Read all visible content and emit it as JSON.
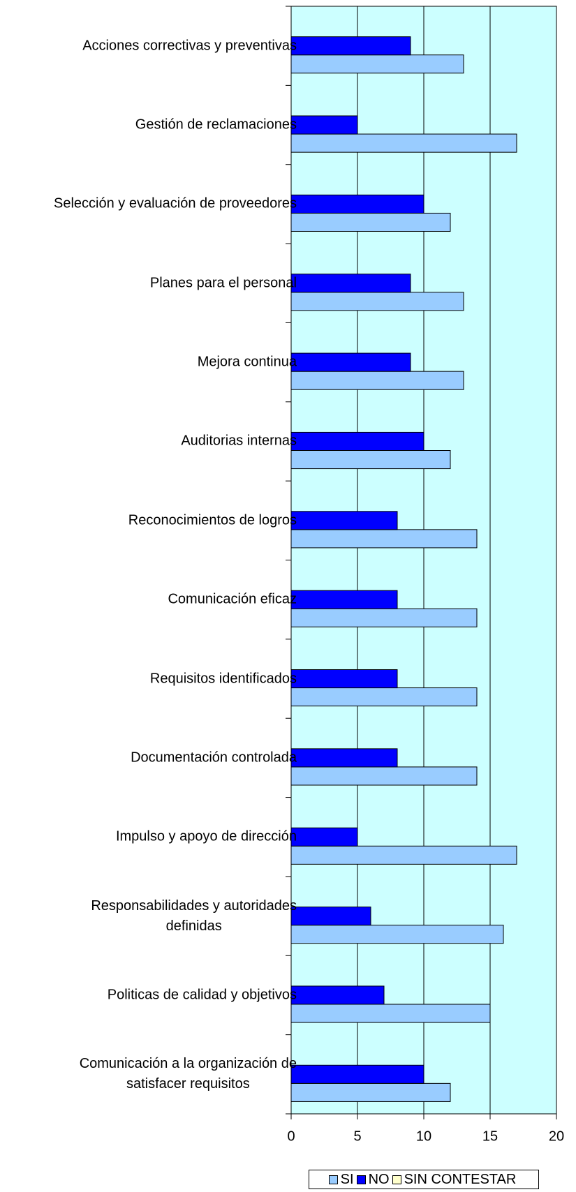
{
  "chart_data": {
    "type": "hbar",
    "categories": [
      "Acciones correctivas y preventivas",
      "Gestión de reclamaciones",
      "Selección y evaluación de proveedores",
      "Planes para el personal",
      "Mejora continua",
      "Auditorias internas",
      "Reconocimientos de logros",
      "Comunicación eficaz",
      "Requisitos identificados",
      "Documentación controlada",
      "Impulso y apoyo de dirección",
      "Responsabilidades y autoridades\ndefinidas",
      "Politicas de calidad y objetivos",
      "Comunicación a la organización de\nsatisfacer requisitos"
    ],
    "series": [
      {
        "name": "SI",
        "color": "#99ccff",
        "values": [
          13,
          17,
          12,
          13,
          13,
          12,
          14,
          14,
          14,
          14,
          17,
          16,
          15,
          12
        ]
      },
      {
        "name": "NO",
        "color": "#0000ff",
        "values": [
          9,
          5,
          10,
          9,
          9,
          10,
          8,
          8,
          8,
          8,
          5,
          6,
          7,
          10
        ]
      },
      {
        "name": "SIN CONTESTAR",
        "color": "#ffffcc",
        "values": [
          0,
          0,
          0,
          0,
          0,
          0,
          0,
          0,
          0,
          0,
          0,
          0,
          0,
          0
        ]
      }
    ],
    "xlim": [
      0,
      20
    ],
    "xticks": [
      0,
      5,
      10,
      15,
      20
    ],
    "grid": true,
    "plot_background": "#ccffff",
    "legend": "bottom"
  }
}
